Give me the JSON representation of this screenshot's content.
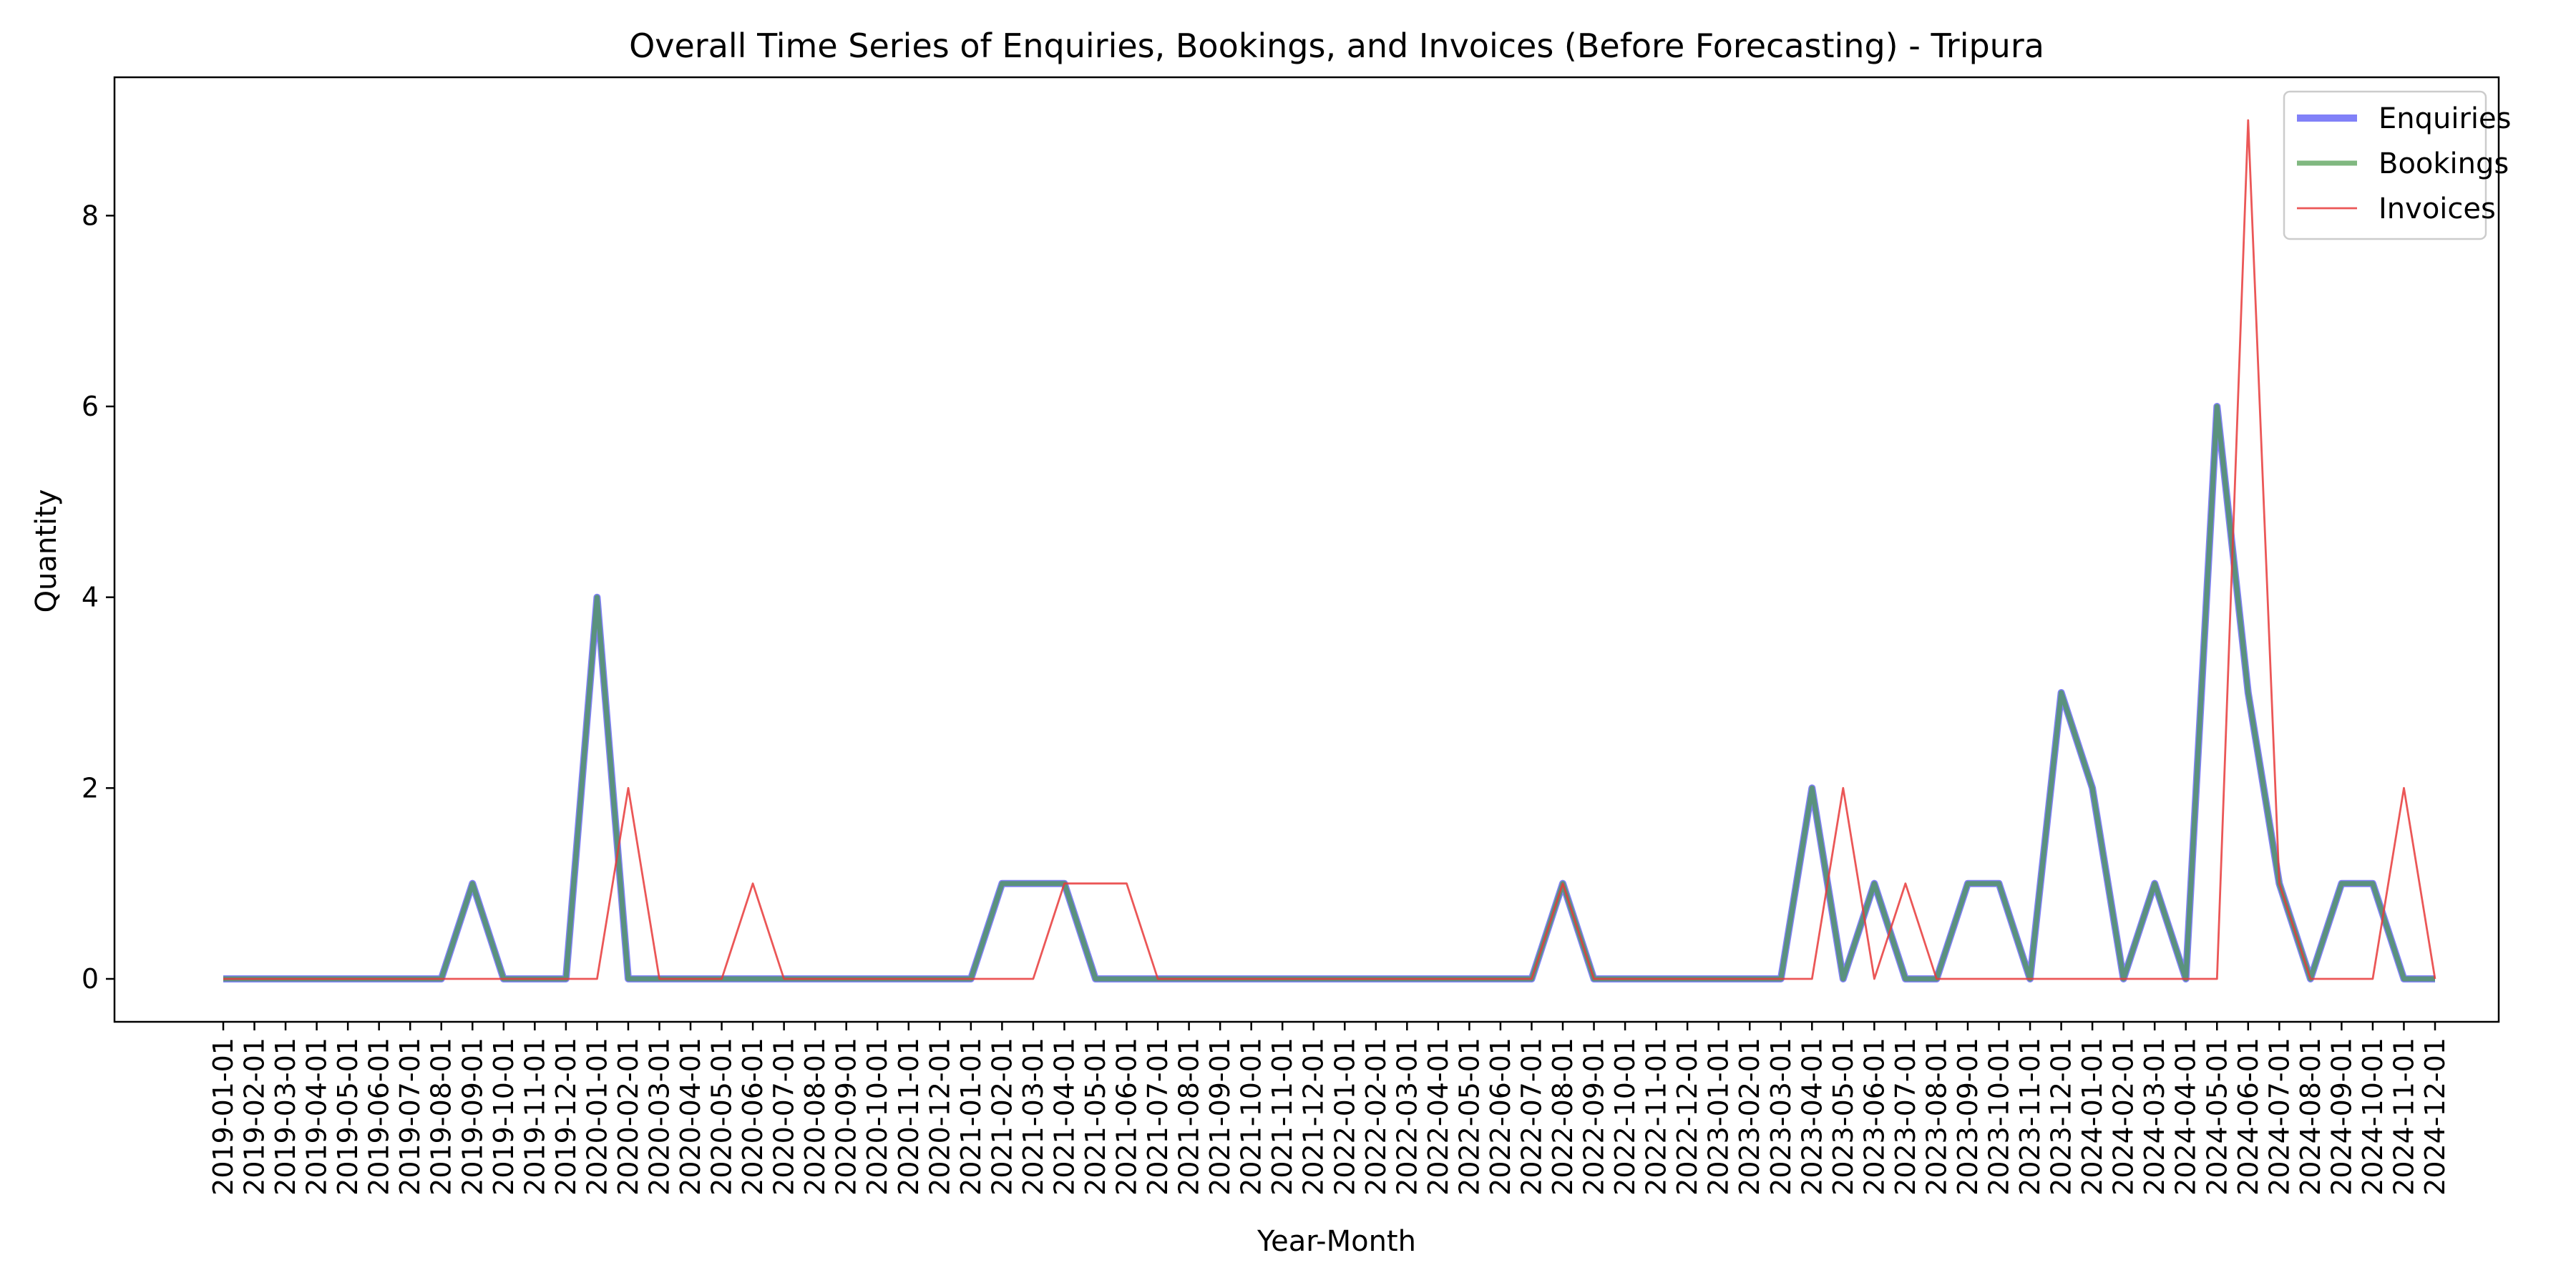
{
  "chart_data": {
    "type": "line",
    "title": "Overall Time Series of Enquiries, Bookings, and Invoices (Before Forecasting) - Tripura",
    "xlabel": "Year-Month",
    "ylabel": "Quantity",
    "x": [
      "2019-01-01",
      "2019-02-01",
      "2019-03-01",
      "2019-04-01",
      "2019-05-01",
      "2019-06-01",
      "2019-07-01",
      "2019-08-01",
      "2019-09-01",
      "2019-10-01",
      "2019-11-01",
      "2019-12-01",
      "2020-01-01",
      "2020-02-01",
      "2020-03-01",
      "2020-04-01",
      "2020-05-01",
      "2020-06-01",
      "2020-07-01",
      "2020-08-01",
      "2020-09-01",
      "2020-10-01",
      "2020-11-01",
      "2020-12-01",
      "2021-01-01",
      "2021-02-01",
      "2021-03-01",
      "2021-04-01",
      "2021-05-01",
      "2021-06-01",
      "2021-07-01",
      "2021-08-01",
      "2021-09-01",
      "2021-10-01",
      "2021-11-01",
      "2021-12-01",
      "2022-01-01",
      "2022-02-01",
      "2022-03-01",
      "2022-04-01",
      "2022-05-01",
      "2022-06-01",
      "2022-07-01",
      "2022-08-01",
      "2022-09-01",
      "2022-10-01",
      "2022-11-01",
      "2022-12-01",
      "2023-01-01",
      "2023-02-01",
      "2023-03-01",
      "2023-04-01",
      "2023-05-01",
      "2023-06-01",
      "2023-07-01",
      "2023-08-01",
      "2023-09-01",
      "2023-10-01",
      "2023-11-01",
      "2023-12-01",
      "2024-01-01",
      "2024-02-01",
      "2024-03-01",
      "2024-04-01",
      "2024-05-01",
      "2024-06-01",
      "2024-07-01",
      "2024-08-01",
      "2024-09-01",
      "2024-10-01",
      "2024-11-01",
      "2024-12-01"
    ],
    "yticks": [
      0,
      2,
      4,
      6,
      8
    ],
    "ylim": [
      -0.45,
      9.45
    ],
    "grid": false,
    "legend_position": "top-right",
    "series": [
      {
        "name": "Enquiries",
        "color": "#4b4bf5",
        "values": [
          0,
          0,
          0,
          0,
          0,
          0,
          0,
          0,
          1,
          0,
          0,
          0,
          4,
          0,
          0,
          0,
          0,
          0,
          0,
          0,
          0,
          0,
          0,
          0,
          0,
          1,
          1,
          1,
          0,
          0,
          0,
          0,
          0,
          0,
          0,
          0,
          0,
          0,
          0,
          0,
          0,
          0,
          0,
          1,
          0,
          0,
          0,
          0,
          0,
          0,
          0,
          2,
          0,
          1,
          0,
          0,
          1,
          1,
          0,
          3,
          2,
          0,
          1,
          0,
          6,
          3,
          1,
          0,
          1,
          1,
          0,
          0
        ]
      },
      {
        "name": "Bookings",
        "color": "#4a9a4a",
        "values": [
          0,
          0,
          0,
          0,
          0,
          0,
          0,
          0,
          1,
          0,
          0,
          0,
          4,
          0,
          0,
          0,
          0,
          0,
          0,
          0,
          0,
          0,
          0,
          0,
          0,
          1,
          1,
          1,
          0,
          0,
          0,
          0,
          0,
          0,
          0,
          0,
          0,
          0,
          0,
          0,
          0,
          0,
          0,
          1,
          0,
          0,
          0,
          0,
          0,
          0,
          0,
          2,
          0,
          1,
          0,
          0,
          1,
          1,
          0,
          3,
          2,
          0,
          1,
          0,
          6,
          3,
          1,
          0,
          1,
          1,
          0,
          0
        ]
      },
      {
        "name": "Invoices",
        "color": "#e83a3a",
        "values": [
          0,
          0,
          0,
          0,
          0,
          0,
          0,
          0,
          0,
          0,
          0,
          0,
          0,
          2,
          0,
          0,
          0,
          1,
          0,
          0,
          0,
          0,
          0,
          0,
          0,
          0,
          0,
          1,
          1,
          1,
          0,
          0,
          0,
          0,
          0,
          0,
          0,
          0,
          0,
          0,
          0,
          0,
          0,
          1,
          0,
          0,
          0,
          0,
          0,
          0,
          0,
          0,
          2,
          0,
          1,
          0,
          0,
          0,
          0,
          0,
          0,
          0,
          0,
          0,
          0,
          9,
          1,
          0,
          0,
          0,
          2,
          0
        ]
      }
    ]
  }
}
